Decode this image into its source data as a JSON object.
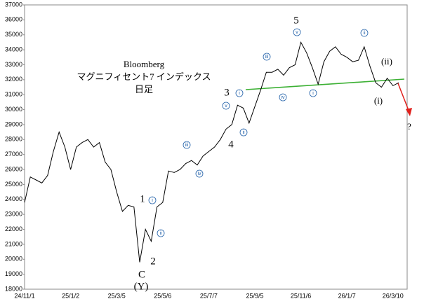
{
  "chart_data": {
    "type": "line",
    "title": [
      "Bloomberg",
      "マグニフィセント7 インデックス",
      "日足"
    ],
    "categories": [
      "24/11/1",
      null,
      null,
      null,
      null,
      null,
      null,
      null,
      "25/1/2",
      null,
      null,
      null,
      null,
      null,
      null,
      null,
      "25/3/5",
      null,
      null,
      null,
      null,
      null,
      null,
      null,
      "25/5/6",
      null,
      null,
      null,
      null,
      null,
      null,
      null,
      "25/7/7",
      null,
      null,
      null,
      null,
      null,
      null,
      null,
      "25/9/5",
      null,
      null,
      null,
      null,
      null,
      null,
      null,
      "25/11/6",
      null,
      null,
      null,
      null,
      null,
      null,
      null,
      "26/1/7",
      null,
      null,
      null,
      null,
      null,
      null,
      null,
      "26/3/10",
      null
    ],
    "series": [
      {
        "name": null,
        "color": "#000000",
        "values": [
          23800,
          25500,
          25300,
          25100,
          25600,
          27200,
          28500,
          27500,
          26000,
          27500,
          27800,
          28000,
          27500,
          27800,
          26500,
          26000,
          24500,
          23200,
          23600,
          23500,
          19800,
          22000,
          21200,
          23500,
          23800,
          25900,
          25800,
          26000,
          26400,
          26600,
          26300,
          26900,
          27200,
          27500,
          28000,
          28700,
          29000,
          30300,
          30100,
          29100,
          30200,
          31300,
          32500,
          32500,
          32700,
          32300,
          32800,
          33000,
          34500,
          33800,
          32800,
          31700,
          33200,
          33900,
          34200,
          33700,
          33500,
          33200,
          33300,
          34200,
          32900,
          31800,
          31500,
          32100,
          31600,
          31800
        ]
      }
    ],
    "ylim": [
      18000,
      37000
    ],
    "yticks": [
      18000,
      19000,
      20000,
      21000,
      22000,
      23000,
      24000,
      25000,
      26000,
      27000,
      28000,
      29000,
      30000,
      31000,
      32000,
      33000,
      34000,
      35000,
      36000,
      37000
    ],
    "grid": false,
    "annotations": [
      "1",
      "2",
      "C",
      "(Y)",
      "3",
      "4",
      "5",
      "(ii)",
      "(i)",
      "?"
    ],
    "circled_labels": [
      "i",
      "ii",
      "iii",
      "iv",
      "v",
      "i",
      "ii",
      "iii",
      "iv",
      "v",
      "i",
      "ii"
    ]
  }
}
